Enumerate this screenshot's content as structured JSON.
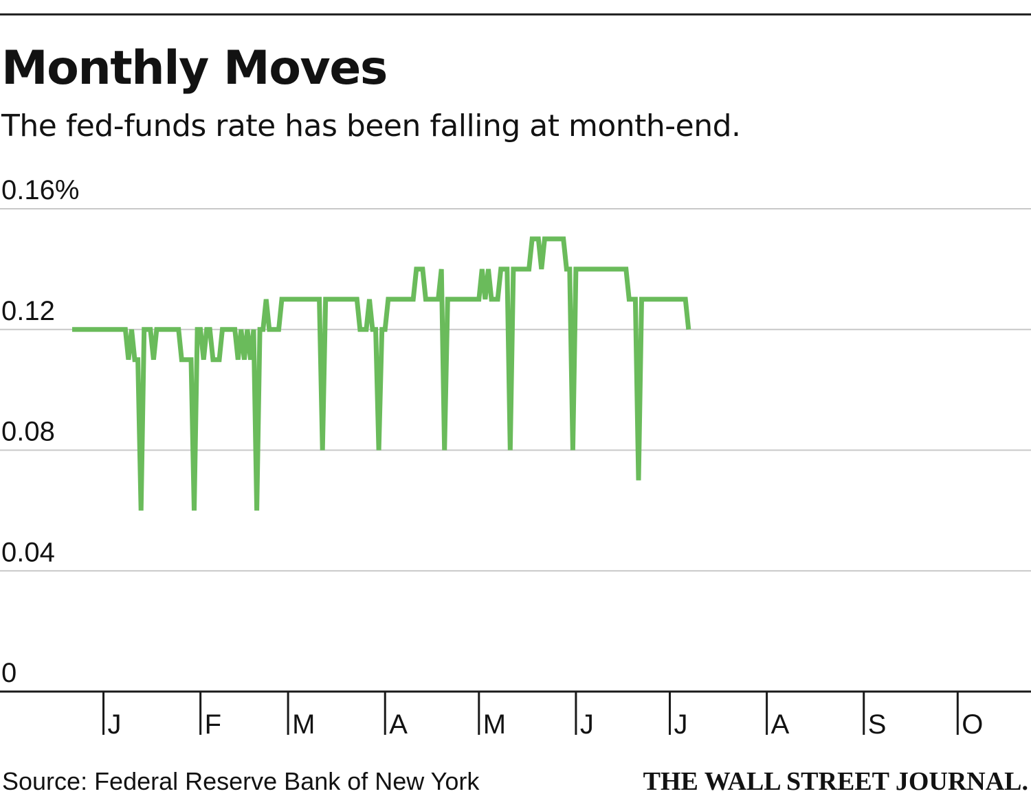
{
  "chart_data": {
    "type": "line",
    "title": "Monthly Moves",
    "subtitle": "The fed-funds rate has been falling at month-end.",
    "source": "Source: Federal Reserve Bank of New York",
    "brand": "THE WALL STREET JOURNAL.",
    "ylim": [
      0,
      0.16
    ],
    "yticks": [
      {
        "value": 0.16,
        "label": "0.16%"
      },
      {
        "value": 0.12,
        "label": "0.12"
      },
      {
        "value": 0.08,
        "label": "0.08"
      },
      {
        "value": 0.04,
        "label": "0.04"
      },
      {
        "value": 0,
        "label": "0"
      }
    ],
    "xticks": [
      {
        "label": "J",
        "date": "2015-01-01"
      },
      {
        "label": "F",
        "date": "2015-02-01"
      },
      {
        "label": "M",
        "date": "2015-03-01"
      },
      {
        "label": "A",
        "date": "2015-04-01"
      },
      {
        "label": "M",
        "date": "2015-05-01"
      },
      {
        "label": "J",
        "date": "2015-06-01"
      },
      {
        "label": "J",
        "date": "2015-07-01"
      },
      {
        "label": "A",
        "date": "2015-08-01"
      },
      {
        "label": "S",
        "date": "2015-09-01"
      },
      {
        "label": "O",
        "date": "2015-10-01"
      }
    ],
    "xlim": [
      "2014-12-22",
      "2015-10-24"
    ],
    "grid": true,
    "series": [
      {
        "color": "#6abb5b",
        "points": [
          [
            "2014-12-22",
            0.12
          ],
          [
            "2015-01-08",
            0.12
          ],
          [
            "2015-01-09",
            0.11
          ],
          [
            "2015-01-10",
            0.12
          ],
          [
            "2015-01-11",
            0.11
          ],
          [
            "2015-01-12",
            0.11
          ],
          [
            "2015-01-13",
            0.06
          ],
          [
            "2015-01-14",
            0.12
          ],
          [
            "2015-01-16",
            0.12
          ],
          [
            "2015-01-17",
            0.11
          ],
          [
            "2015-01-18",
            0.12
          ],
          [
            "2015-01-25",
            0.12
          ],
          [
            "2015-01-26",
            0.11
          ],
          [
            "2015-01-29",
            0.11
          ],
          [
            "2015-01-30",
            0.06
          ],
          [
            "2015-01-31",
            0.12
          ],
          [
            "2015-02-01",
            0.12
          ],
          [
            "2015-02-02",
            0.11
          ],
          [
            "2015-02-03",
            0.12
          ],
          [
            "2015-02-04",
            0.12
          ],
          [
            "2015-02-05",
            0.11
          ],
          [
            "2015-02-07",
            0.11
          ],
          [
            "2015-02-08",
            0.12
          ],
          [
            "2015-02-12",
            0.12
          ],
          [
            "2015-02-13",
            0.11
          ],
          [
            "2015-02-14",
            0.12
          ],
          [
            "2015-02-15",
            0.11
          ],
          [
            "2015-02-16",
            0.12
          ],
          [
            "2015-02-17",
            0.11
          ],
          [
            "2015-02-18",
            0.12
          ],
          [
            "2015-02-19",
            0.06
          ],
          [
            "2015-02-20",
            0.12
          ],
          [
            "2015-02-21",
            0.12
          ],
          [
            "2015-02-22",
            0.13
          ],
          [
            "2015-02-23",
            0.12
          ],
          [
            "2015-02-26",
            0.12
          ],
          [
            "2015-02-27",
            0.13
          ],
          [
            "2015-03-11",
            0.13
          ],
          [
            "2015-03-12",
            0.08
          ],
          [
            "2015-03-13",
            0.13
          ],
          [
            "2015-03-23",
            0.13
          ],
          [
            "2015-03-24",
            0.12
          ],
          [
            "2015-03-26",
            0.12
          ],
          [
            "2015-03-27",
            0.13
          ],
          [
            "2015-03-28",
            0.12
          ],
          [
            "2015-03-29",
            0.12
          ],
          [
            "2015-03-30",
            0.08
          ],
          [
            "2015-03-31",
            0.12
          ],
          [
            "2015-04-01",
            0.12
          ],
          [
            "2015-04-02",
            0.13
          ],
          [
            "2015-04-10",
            0.13
          ],
          [
            "2015-04-11",
            0.14
          ],
          [
            "2015-04-13",
            0.14
          ],
          [
            "2015-04-14",
            0.13
          ],
          [
            "2015-04-18",
            0.13
          ],
          [
            "2015-04-19",
            0.14
          ],
          [
            "2015-04-20",
            0.08
          ],
          [
            "2015-04-21",
            0.13
          ],
          [
            "2015-05-01",
            0.13
          ],
          [
            "2015-05-02",
            0.14
          ],
          [
            "2015-05-03",
            0.13
          ],
          [
            "2015-05-04",
            0.14
          ],
          [
            "2015-05-05",
            0.13
          ],
          [
            "2015-05-07",
            0.13
          ],
          [
            "2015-05-08",
            0.14
          ],
          [
            "2015-05-10",
            0.14
          ],
          [
            "2015-05-11",
            0.08
          ],
          [
            "2015-05-12",
            0.14
          ],
          [
            "2015-05-17",
            0.14
          ],
          [
            "2015-05-18",
            0.15
          ],
          [
            "2015-05-20",
            0.15
          ],
          [
            "2015-05-21",
            0.14
          ],
          [
            "2015-05-22",
            0.15
          ],
          [
            "2015-05-28",
            0.15
          ],
          [
            "2015-05-29",
            0.14
          ],
          [
            "2015-05-30",
            0.14
          ],
          [
            "2015-05-31",
            0.08
          ],
          [
            "2015-06-01",
            0.14
          ],
          [
            "2015-06-17",
            0.14
          ],
          [
            "2015-06-18",
            0.13
          ],
          [
            "2015-06-20",
            0.13
          ],
          [
            "2015-06-21",
            0.07
          ],
          [
            "2015-06-22",
            0.13
          ],
          [
            "2015-07-06",
            0.13
          ],
          [
            "2015-07-07",
            0.12
          ]
        ]
      }
    ]
  }
}
